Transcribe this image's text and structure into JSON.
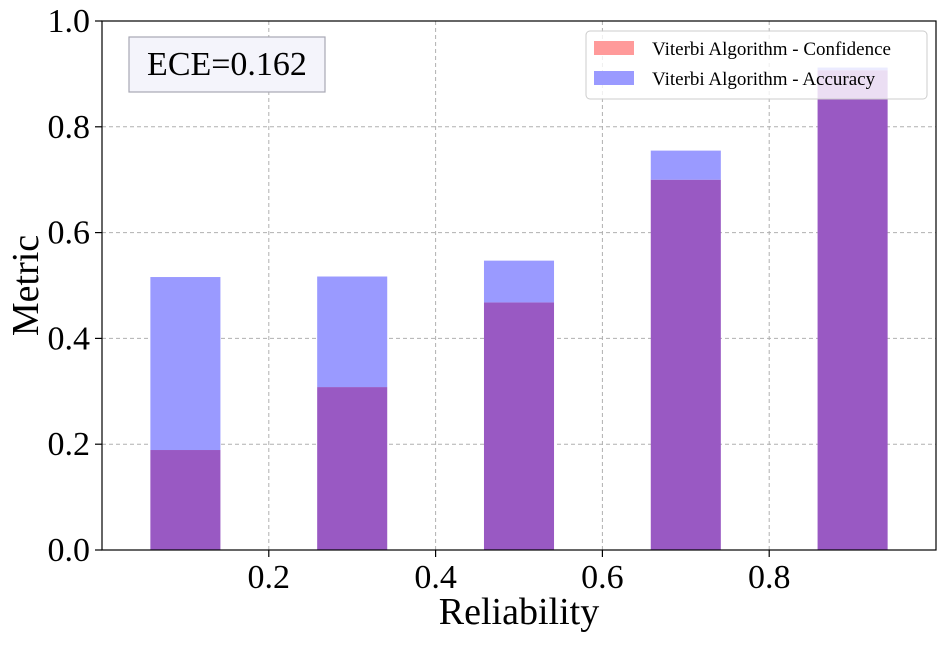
{
  "chart_data": {
    "type": "bar",
    "title": "",
    "xlabel": "Reliability",
    "ylabel": "Metric",
    "xlim": [
      0.0,
      1.0
    ],
    "ylim": [
      0.0,
      1.0
    ],
    "xticks": [
      "0.2",
      "0.4",
      "0.6",
      "0.8"
    ],
    "yticks": [
      "0.0",
      "0.2",
      "0.4",
      "0.6",
      "0.8",
      "1.0"
    ],
    "grid": true,
    "legend_position": "top-right",
    "annotation": "ECE=0.162",
    "bin_centers": [
      0.1,
      0.3,
      0.5,
      0.7,
      0.9
    ],
    "bar_width": 0.1,
    "series": [
      {
        "name": "Viterbi Algorithm - Confidence",
        "color": "#ff9a9a",
        "values": [
          0.189,
          0.308,
          0.468,
          0.7,
          0.907
        ]
      },
      {
        "name": "Viterbi Algorithm - Accuracy",
        "color": "#9a9aff",
        "values": [
          0.516,
          0.517,
          0.547,
          0.755,
          0.912
        ]
      }
    ],
    "overlap_color": "#9959c3"
  }
}
